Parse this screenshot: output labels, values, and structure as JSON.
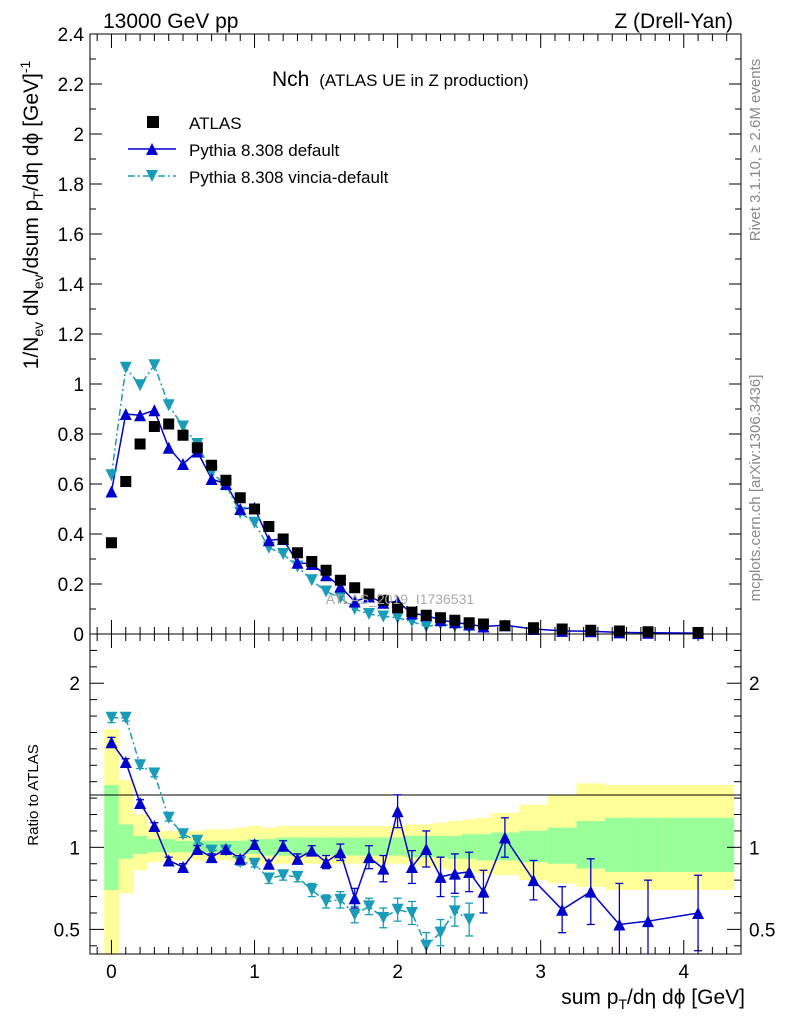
{
  "header": {
    "left": "13000 GeV pp",
    "right": "Z (Drell-Yan)"
  },
  "title": {
    "main": "Nch",
    "sub": "(ATLAS UE in Z production)"
  },
  "watermark": "ATLAS_2019_I1736531",
  "side_notes": {
    "rivet": "Rivet 3.1.10, ≥ 2.6M events",
    "mcplots": "mcplots.cern.ch [arXiv:1306.3436]"
  },
  "top_ylabel": {
    "a": "1/N",
    "a_sub": "ev",
    "b": " dN",
    "b_sub": "ev",
    "c": "/dsum p",
    "c_sub": "T",
    "d": "/dη dϕ  [GeV]",
    "d_sup": "-1"
  },
  "bottom_ylabel": "Ratio to ATLAS",
  "xlabel": {
    "a": "sum p",
    "a_sub": "T",
    "b": "/dη dϕ [GeV]"
  },
  "colors": {
    "atlas": "#000000",
    "default": "#0000cc",
    "vincia": "#1a9cb8",
    "band_inner": "#99ff99",
    "band_outer": "#ffff99"
  },
  "chart_data": [
    {
      "type": "scatter",
      "panel": "main",
      "xlim": [
        -0.15,
        4.4
      ],
      "ylim": [
        0,
        2.4
      ],
      "yticks": [
        "0",
        "0.2",
        "0.4",
        "0.6",
        "0.8",
        "1",
        "1.2",
        "1.4",
        "1.6",
        "1.8",
        "2",
        "2.2",
        "2.4"
      ],
      "xticks": [
        "0",
        "1",
        "2",
        "3",
        "4"
      ],
      "legend": {
        "placement": "top-left",
        "entries": [
          "ATLAS",
          "Pythia 8.308 default",
          "Pythia 8.308 vincia-default"
        ]
      },
      "x": [
        0,
        0.1,
        0.2,
        0.3,
        0.4,
        0.5,
        0.6,
        0.7,
        0.8,
        0.9,
        1.0,
        1.1,
        1.2,
        1.3,
        1.4,
        1.5,
        1.6,
        1.7,
        1.8,
        1.9,
        2.0,
        2.1,
        2.2,
        2.3,
        2.4,
        2.5,
        2.6,
        2.75,
        2.95,
        3.15,
        3.35,
        3.55,
        3.75,
        4.1
      ],
      "series": [
        {
          "name": "ATLAS",
          "marker": "square",
          "values": [
            0.365,
            0.61,
            0.76,
            0.83,
            0.84,
            0.795,
            0.745,
            0.675,
            0.615,
            0.545,
            0.5,
            0.43,
            0.38,
            0.325,
            0.29,
            0.255,
            0.215,
            0.185,
            0.16,
            0.135,
            0.105,
            0.09,
            0.075,
            0.065,
            0.055,
            0.045,
            0.04,
            0.033,
            0.025,
            0.02,
            0.015,
            0.012,
            0.009,
            0.006
          ]
        },
        {
          "name": "Pythia 8.308 default",
          "marker": "triangle-up",
          "values": [
            0.57,
            0.88,
            0.875,
            0.895,
            0.745,
            0.68,
            0.73,
            0.62,
            0.6,
            0.5,
            0.505,
            0.375,
            0.38,
            0.285,
            0.28,
            0.235,
            0.19,
            0.13,
            0.15,
            0.125,
            0.13,
            0.082,
            0.075,
            0.055,
            0.047,
            0.038,
            0.03,
            0.035,
            0.02,
            0.0125,
            0.011,
            0.0063,
            0.005,
            0.0036
          ]
        },
        {
          "name": "Pythia 8.308 vincia-default",
          "marker": "triangle-down",
          "values": [
            0.635,
            1.065,
            0.995,
            1.075,
            0.915,
            0.83,
            0.76,
            0.645,
            0.595,
            0.485,
            0.445,
            0.345,
            0.32,
            0.27,
            0.215,
            0.17,
            0.145,
            0.1,
            0.08,
            0.07,
            0.065,
            0.05,
            0.03,
            0.04,
            0.03,
            0.025
          ]
        }
      ]
    },
    {
      "type": "scatter",
      "panel": "ratio",
      "xlim": [
        -0.15,
        4.4
      ],
      "ylim": [
        0.35,
        2.3
      ],
      "yticks": [
        "0.5",
        "1",
        "2"
      ],
      "x_default": [
        0,
        0.1,
        0.2,
        0.3,
        0.4,
        0.5,
        0.6,
        0.7,
        0.8,
        0.9,
        1.0,
        1.1,
        1.2,
        1.3,
        1.4,
        1.5,
        1.6,
        1.7,
        1.8,
        1.9,
        2.0,
        2.1,
        2.2,
        2.3,
        2.4,
        2.5,
        2.6,
        2.75,
        2.95,
        3.15,
        3.35,
        3.55,
        3.75,
        4.1
      ],
      "x_vincia": [
        0,
        0.1,
        0.2,
        0.3,
        0.4,
        0.5,
        0.6,
        0.7,
        0.8,
        0.9,
        1.0,
        1.1,
        1.2,
        1.3,
        1.4,
        1.5,
        1.6,
        1.7,
        1.8,
        1.9,
        2.0,
        2.1,
        2.2,
        2.3,
        2.4,
        2.5
      ],
      "series": [
        {
          "name": "Pythia 8.308 default",
          "values": [
            1.64,
            1.52,
            1.27,
            1.13,
            0.92,
            0.88,
            0.99,
            0.94,
            0.99,
            0.93,
            1.02,
            0.9,
            1.01,
            0.93,
            0.98,
            0.91,
            0.97,
            0.69,
            0.94,
            0.87,
            1.22,
            0.88,
            0.99,
            0.82,
            0.84,
            0.85,
            0.73,
            1.06,
            0.8,
            0.62,
            0.73,
            0.53,
            0.55,
            0.6
          ],
          "errors": [
            0.03,
            0.02,
            0.02,
            0.02,
            0.02,
            0.02,
            0.02,
            0.02,
            0.02,
            0.02,
            0.02,
            0.02,
            0.03,
            0.03,
            0.03,
            0.04,
            0.05,
            0.06,
            0.07,
            0.08,
            0.1,
            0.1,
            0.11,
            0.12,
            0.12,
            0.12,
            0.13,
            0.12,
            0.12,
            0.14,
            0.2,
            0.25,
            0.25,
            0.23
          ]
        },
        {
          "name": "Pythia 8.308 vincia-default",
          "values": [
            1.79,
            1.79,
            1.5,
            1.45,
            1.18,
            1.08,
            1.04,
            0.98,
            0.98,
            0.91,
            0.9,
            0.81,
            0.83,
            0.82,
            0.74,
            0.67,
            0.68,
            0.59,
            0.64,
            0.57,
            0.62,
            0.6,
            0.4,
            0.48,
            0.61,
            0.56
          ],
          "errors": [
            0.03,
            0.02,
            0.02,
            0.02,
            0.02,
            0.02,
            0.02,
            0.02,
            0.02,
            0.02,
            0.02,
            0.03,
            0.03,
            0.03,
            0.04,
            0.04,
            0.05,
            0.05,
            0.05,
            0.06,
            0.07,
            0.07,
            0.08,
            0.08,
            0.09,
            0.1
          ]
        }
      ],
      "band_edges": [
        -0.05,
        0.05,
        0.15,
        0.25,
        0.35,
        0.45,
        0.55,
        0.65,
        0.75,
        0.85,
        0.95,
        1.05,
        1.15,
        1.25,
        1.35,
        1.45,
        1.55,
        1.65,
        1.75,
        1.85,
        1.95,
        2.05,
        2.15,
        2.25,
        2.35,
        2.45,
        2.55,
        2.65,
        2.85,
        3.05,
        3.25,
        3.45,
        3.65,
        3.85,
        4.35
      ],
      "band_inner_lo": [
        0.74,
        0.93,
        0.96,
        0.97,
        0.97,
        0.97,
        0.97,
        0.97,
        0.97,
        0.96,
        0.96,
        0.95,
        0.95,
        0.95,
        0.95,
        0.95,
        0.95,
        0.95,
        0.95,
        0.95,
        0.95,
        0.94,
        0.94,
        0.94,
        0.93,
        0.93,
        0.92,
        0.92,
        0.91,
        0.9,
        0.87,
        0.85,
        0.85,
        0.85
      ],
      "band_inner_hi": [
        1.38,
        1.14,
        1.07,
        1.05,
        1.05,
        1.04,
        1.04,
        1.04,
        1.04,
        1.04,
        1.05,
        1.05,
        1.06,
        1.06,
        1.06,
        1.06,
        1.06,
        1.06,
        1.06,
        1.06,
        1.06,
        1.07,
        1.07,
        1.07,
        1.07,
        1.08,
        1.08,
        1.09,
        1.1,
        1.12,
        1.16,
        1.18,
        1.18,
        1.18
      ],
      "band_outer_lo": [
        0.3,
        0.72,
        0.86,
        0.91,
        0.92,
        0.92,
        0.92,
        0.92,
        0.92,
        0.91,
        0.91,
        0.9,
        0.9,
        0.9,
        0.9,
        0.9,
        0.9,
        0.9,
        0.9,
        0.9,
        0.9,
        0.89,
        0.88,
        0.87,
        0.86,
        0.85,
        0.84,
        0.83,
        0.8,
        0.78,
        0.76,
        0.74,
        0.74,
        0.74
      ],
      "band_outer_hi": [
        1.72,
        1.41,
        1.2,
        1.13,
        1.1,
        1.1,
        1.1,
        1.11,
        1.11,
        1.12,
        1.13,
        1.12,
        1.13,
        1.13,
        1.13,
        1.13,
        1.13,
        1.13,
        1.13,
        1.13,
        1.13,
        1.14,
        1.14,
        1.15,
        1.16,
        1.17,
        1.18,
        1.21,
        1.26,
        1.32,
        1.39,
        1.38,
        1.38,
        1.38
      ]
    }
  ]
}
